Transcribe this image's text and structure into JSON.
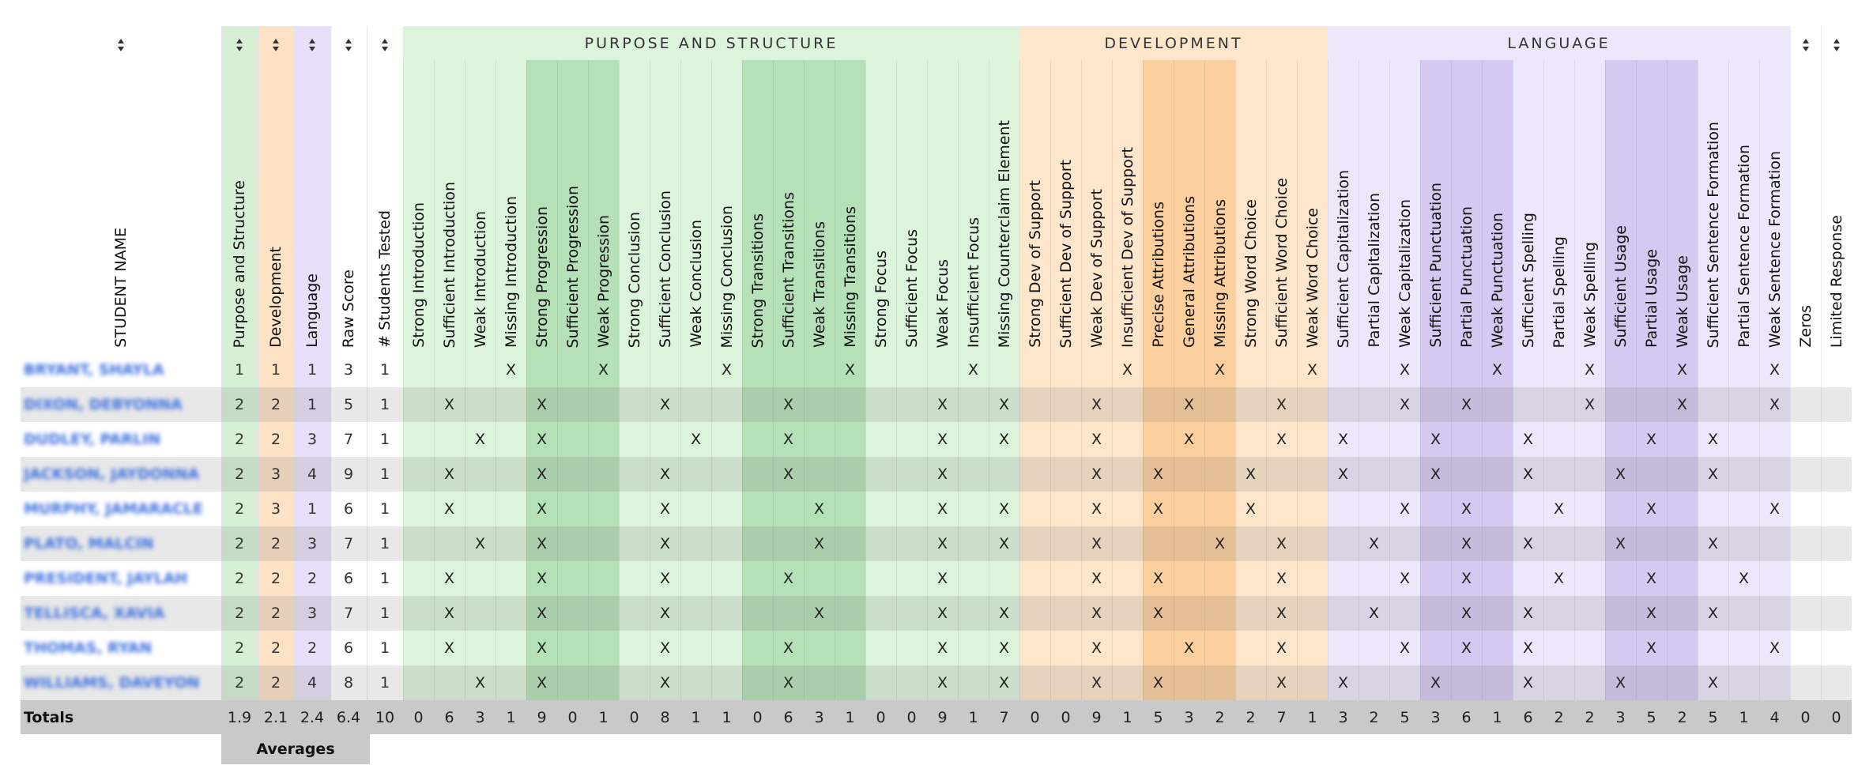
{
  "name_header": "STUDENT NAME",
  "summary_columns": [
    "Purpose and Structure",
    "Development",
    "Language",
    "Raw Score",
    "# Students Tested"
  ],
  "groups": [
    {
      "title": "PURPOSE AND STRUCTURE",
      "columns": [
        "Strong Introduction",
        "Sufficient Introduction",
        "Weak Introduction",
        "Missing Introduction",
        "Strong Progression",
        "Sufficient Progression",
        "Weak Progression",
        "Strong Conclusion",
        "Sufficient Conclusion",
        "Weak Conclusion",
        "Missing Conclusion",
        "Strong Transitions",
        "Sufficient Transitions",
        "Weak Transitions",
        "Missing Transitions",
        "Strong Focus",
        "Sufficient Focus",
        "Weak Focus",
        "Insufficient Focus",
        "Missing Counterclaim Element"
      ]
    },
    {
      "title": "DEVELOPMENT",
      "columns": [
        "Strong Dev of Support",
        "Sufficient Dev of Support",
        "Weak Dev of Support",
        "Insufficient Dev of Support",
        "Precise Attributions",
        "General Attributions",
        "Missing Attributions",
        "Strong Word Choice",
        "Sufficient Word Choice",
        "Weak Word Choice"
      ]
    },
    {
      "title": "LANGUAGE",
      "columns": [
        "Sufficient Capitalization",
        "Partial Capitalization",
        "Weak Capitalization",
        "Sufficient Punctuation",
        "Partial Punctuation",
        "Weak Punctuation",
        "Sufficient Spelling",
        "Partial Spelling",
        "Weak Spelling",
        "Sufficient Usage",
        "Partial Usage",
        "Weak Usage",
        "Sufficient Sentence Formation",
        "Partial Sentence Formation",
        "Weak Sentence Formation"
      ]
    }
  ],
  "extra_columns": [
    "Zeros",
    "Limited Response"
  ],
  "rows": [
    {
      "name": "BRYANT, SHAYLA",
      "scores": [
        1,
        1,
        1,
        3,
        1
      ],
      "cells": [
        null,
        null,
        null,
        "X",
        null,
        null,
        "X",
        null,
        null,
        null,
        "X",
        null,
        null,
        null,
        "X",
        null,
        null,
        null,
        "X",
        null,
        null,
        null,
        null,
        "X",
        null,
        null,
        "X",
        null,
        null,
        "X",
        null,
        null,
        "X",
        null,
        null,
        "X",
        null,
        null,
        "X",
        null,
        null,
        "X",
        null,
        null,
        "X",
        null,
        null
      ]
    },
    {
      "name": "DIXON, DEBYONNA",
      "scores": [
        2,
        2,
        1,
        5,
        1
      ],
      "cells": [
        null,
        "X",
        null,
        null,
        "X",
        null,
        null,
        null,
        "X",
        null,
        null,
        null,
        "X",
        null,
        null,
        null,
        null,
        "X",
        null,
        "X",
        null,
        null,
        "X",
        null,
        null,
        "X",
        null,
        null,
        "X",
        null,
        null,
        null,
        "X",
        null,
        "X",
        null,
        null,
        null,
        "X",
        null,
        null,
        "X",
        null,
        null,
        "X",
        null,
        null
      ]
    },
    {
      "name": "DUDLEY, PARLIN",
      "scores": [
        2,
        2,
        3,
        7,
        1
      ],
      "cells": [
        null,
        null,
        "X",
        null,
        "X",
        null,
        null,
        null,
        null,
        "X",
        null,
        null,
        "X",
        null,
        null,
        null,
        null,
        "X",
        null,
        "X",
        null,
        null,
        "X",
        null,
        null,
        "X",
        null,
        null,
        "X",
        null,
        "X",
        null,
        null,
        "X",
        null,
        null,
        "X",
        null,
        null,
        null,
        "X",
        null,
        "X",
        null,
        null,
        null,
        null
      ]
    },
    {
      "name": "JACKSON, JAYDONNA",
      "scores": [
        2,
        3,
        4,
        9,
        1
      ],
      "cells": [
        null,
        "X",
        null,
        null,
        "X",
        null,
        null,
        null,
        "X",
        null,
        null,
        null,
        "X",
        null,
        null,
        null,
        null,
        "X",
        null,
        null,
        null,
        null,
        "X",
        null,
        "X",
        null,
        null,
        "X",
        null,
        null,
        "X",
        null,
        null,
        "X",
        null,
        null,
        "X",
        null,
        null,
        "X",
        null,
        null,
        "X",
        null,
        null,
        null,
        null
      ]
    },
    {
      "name": "MURPHY, JAMARACLE",
      "scores": [
        2,
        3,
        1,
        6,
        1
      ],
      "cells": [
        null,
        "X",
        null,
        null,
        "X",
        null,
        null,
        null,
        "X",
        null,
        null,
        null,
        null,
        "X",
        null,
        null,
        null,
        "X",
        null,
        "X",
        null,
        null,
        "X",
        null,
        "X",
        null,
        null,
        "X",
        null,
        null,
        null,
        null,
        "X",
        null,
        "X",
        null,
        null,
        "X",
        null,
        null,
        "X",
        null,
        null,
        null,
        "X",
        null,
        null
      ]
    },
    {
      "name": "PLATO, MALCIN",
      "scores": [
        2,
        2,
        3,
        7,
        1
      ],
      "cells": [
        null,
        null,
        "X",
        null,
        "X",
        null,
        null,
        null,
        "X",
        null,
        null,
        null,
        null,
        "X",
        null,
        null,
        null,
        "X",
        null,
        "X",
        null,
        null,
        "X",
        null,
        null,
        null,
        "X",
        null,
        "X",
        null,
        null,
        "X",
        null,
        null,
        "X",
        null,
        "X",
        null,
        null,
        "X",
        null,
        null,
        "X",
        null,
        null,
        null,
        null
      ]
    },
    {
      "name": "PRESIDENT, JAYLAH",
      "scores": [
        2,
        2,
        2,
        6,
        1
      ],
      "cells": [
        null,
        "X",
        null,
        null,
        "X",
        null,
        null,
        null,
        "X",
        null,
        null,
        null,
        "X",
        null,
        null,
        null,
        null,
        "X",
        null,
        null,
        null,
        null,
        "X",
        null,
        "X",
        null,
        null,
        null,
        "X",
        null,
        null,
        null,
        "X",
        null,
        "X",
        null,
        null,
        "X",
        null,
        null,
        "X",
        null,
        null,
        "X",
        null,
        null,
        null
      ]
    },
    {
      "name": "TELLISCA, XAVIA",
      "scores": [
        2,
        2,
        3,
        7,
        1
      ],
      "cells": [
        null,
        "X",
        null,
        null,
        "X",
        null,
        null,
        null,
        "X",
        null,
        null,
        null,
        null,
        "X",
        null,
        null,
        null,
        "X",
        null,
        "X",
        null,
        null,
        "X",
        null,
        "X",
        null,
        null,
        null,
        "X",
        null,
        null,
        "X",
        null,
        null,
        "X",
        null,
        "X",
        null,
        null,
        null,
        "X",
        null,
        "X",
        null,
        null,
        null,
        null
      ]
    },
    {
      "name": "THOMAS, RYAN",
      "scores": [
        2,
        2,
        2,
        6,
        1
      ],
      "cells": [
        null,
        "X",
        null,
        null,
        "X",
        null,
        null,
        null,
        "X",
        null,
        null,
        null,
        "X",
        null,
        null,
        null,
        null,
        "X",
        null,
        "X",
        null,
        null,
        "X",
        null,
        null,
        "X",
        null,
        null,
        "X",
        null,
        null,
        null,
        "X",
        null,
        "X",
        null,
        "X",
        null,
        null,
        null,
        "X",
        null,
        null,
        null,
        "X",
        null,
        null
      ]
    },
    {
      "name": "WILLIAMS, DAVEYON",
      "scores": [
        2,
        2,
        4,
        8,
        1
      ],
      "cells": [
        null,
        null,
        "X",
        null,
        "X",
        null,
        null,
        null,
        "X",
        null,
        null,
        null,
        "X",
        null,
        null,
        null,
        null,
        "X",
        null,
        "X",
        null,
        null,
        "X",
        null,
        "X",
        null,
        null,
        null,
        "X",
        null,
        "X",
        null,
        null,
        "X",
        null,
        null,
        "X",
        null,
        null,
        "X",
        null,
        null,
        "X",
        null,
        null,
        null,
        null
      ]
    }
  ],
  "totals": {
    "label": "Totals",
    "scores": [
      1.9,
      2.1,
      2.4,
      6.4,
      10
    ],
    "cells": [
      0,
      6,
      3,
      1,
      9,
      0,
      1,
      0,
      8,
      1,
      1,
      0,
      6,
      3,
      1,
      0,
      0,
      9,
      1,
      7,
      0,
      0,
      9,
      1,
      5,
      3,
      2,
      2,
      7,
      1,
      3,
      2,
      5,
      3,
      6,
      1,
      6,
      2,
      2,
      3,
      5,
      2,
      5,
      1,
      4,
      0,
      0
    ]
  },
  "averages_label": "Averages"
}
